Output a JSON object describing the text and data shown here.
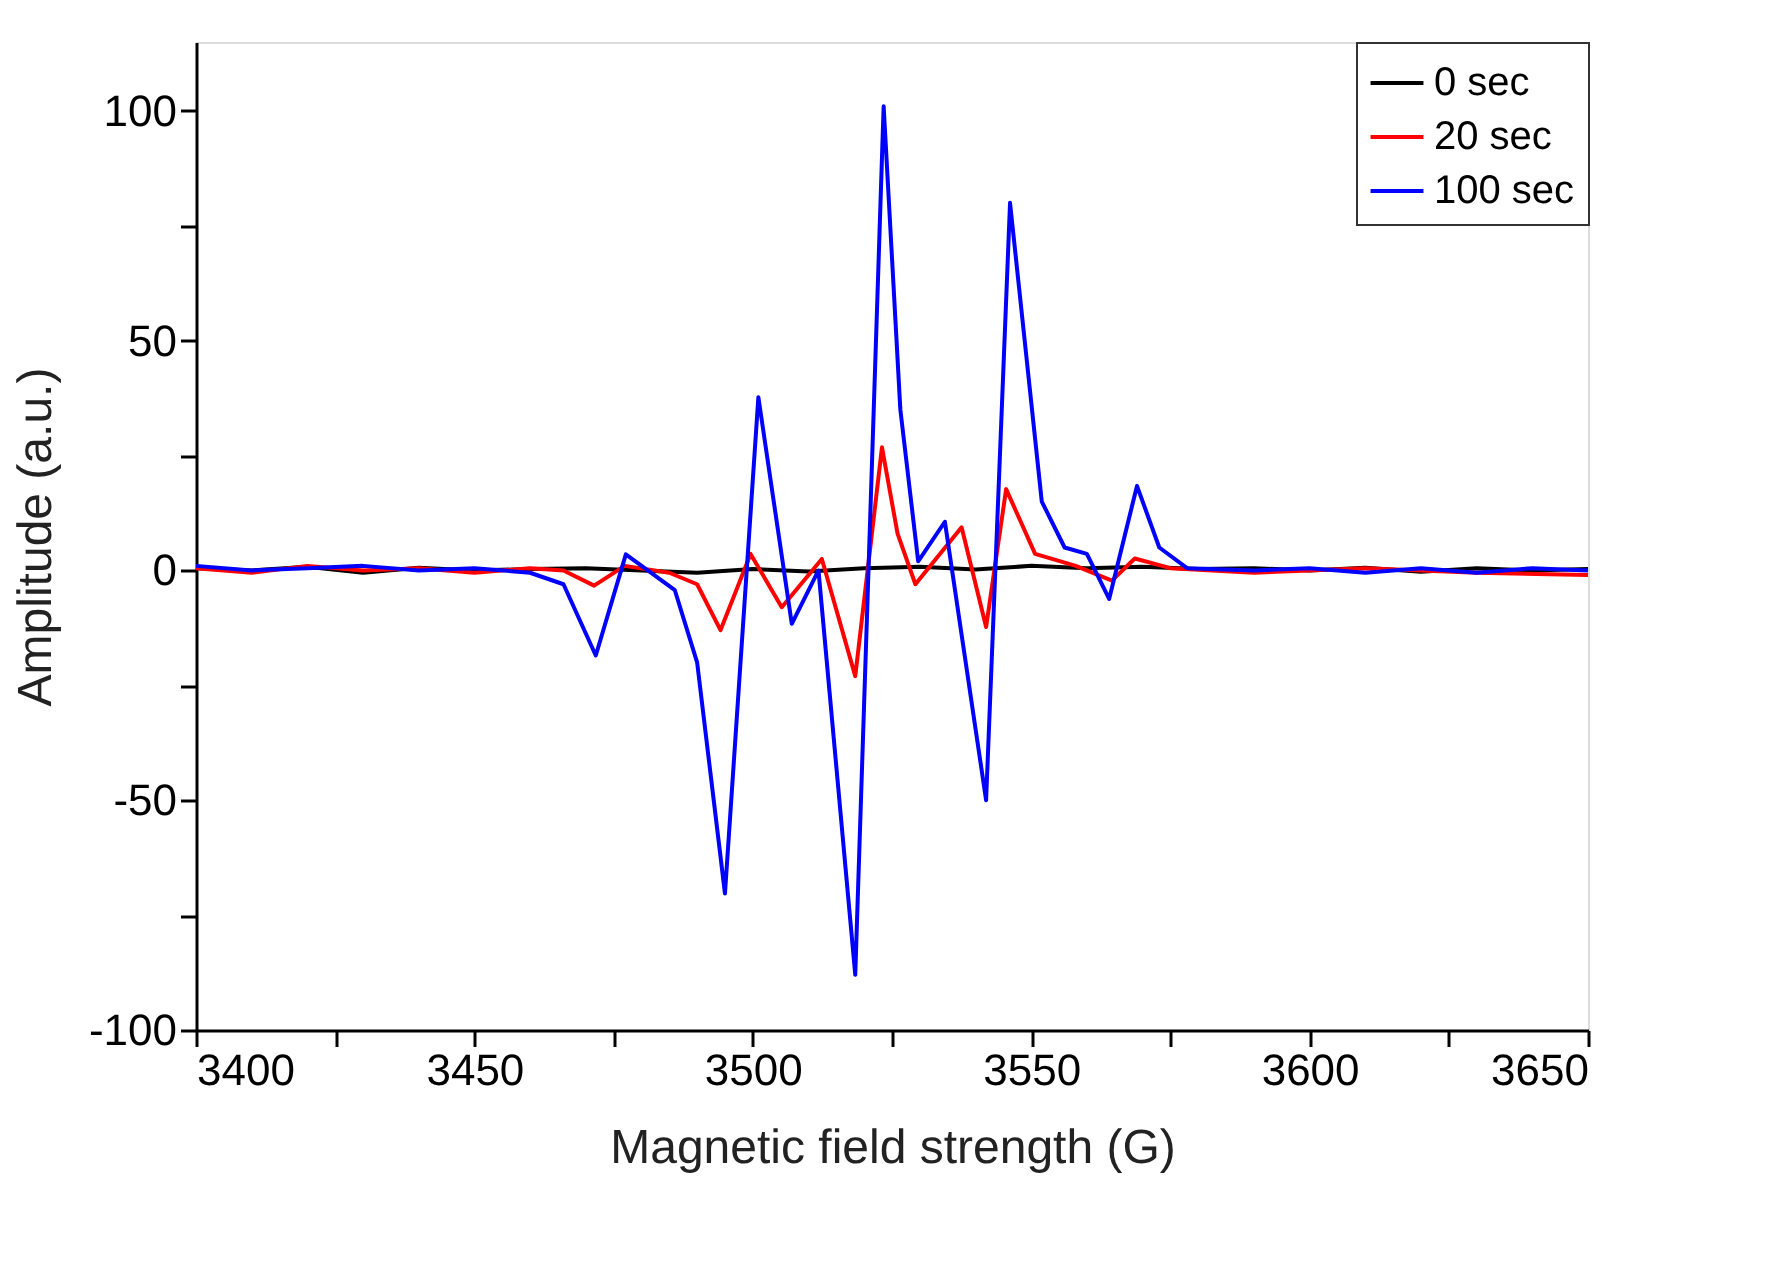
{
  "chart_data": {
    "type": "line",
    "xlabel": "Magnetic field strength (G)",
    "ylabel": "Amplitude (a.u.)",
    "xlim": [
      3400,
      3650
    ],
    "ylim": [
      -100,
      115
    ],
    "xticks": [
      3400,
      {
        "value": 3425,
        "label": null
      },
      3450,
      {
        "value": 3475,
        "label": null
      },
      3500,
      {
        "value": 3525,
        "label": null
      },
      3550,
      {
        "value": 3575,
        "label": null
      },
      3600,
      {
        "value": 3625,
        "label": null
      },
      3650
    ],
    "yticks": [
      -100,
      {
        "value": -75,
        "label": null
      },
      -50,
      {
        "value": -25,
        "label": null
      },
      0,
      {
        "value": 25,
        "label": null
      },
      50,
      {
        "value": 75,
        "label": null
      },
      100
    ],
    "grid": false,
    "legend": "top right",
    "line_style": "solid",
    "marker": "none",
    "series": [
      {
        "name": "0 sec",
        "color": "#000000",
        "x": [
          3400,
          3410,
          3420,
          3430,
          3440,
          3450,
          3460,
          3470,
          3480,
          3490,
          3500,
          3510,
          3520,
          3530,
          3540,
          3550,
          3560,
          3570,
          3580,
          3590,
          3600,
          3610,
          3620,
          3630,
          3640,
          3650
        ],
        "values": [
          0.5,
          0,
          0.8,
          -0.5,
          0.6,
          0,
          0.3,
          0.5,
          0,
          -0.5,
          0.3,
          -0.2,
          0.5,
          0.8,
          0.2,
          1,
          0.5,
          0.8,
          0.3,
          0.5,
          0,
          0.6,
          -0.3,
          0.5,
          0,
          0.3
        ]
      },
      {
        "name": "20 sec",
        "color": "#ff0000",
        "x": [
          3400,
          3410,
          3420,
          3430,
          3440,
          3450,
          3460,
          3466,
          3471.5,
          3477,
          3485,
          3490,
          3494.2,
          3499.6,
          3505.2,
          3512.4,
          3518.4,
          3523.2,
          3526,
          3529.2,
          3537.5,
          3541.9,
          3545.5,
          3550.7,
          3558,
          3564.5,
          3568.6,
          3575,
          3590,
          3610,
          3630,
          3650
        ],
        "values": [
          0.5,
          -0.5,
          1,
          0,
          0.5,
          -0.5,
          0.5,
          0,
          -3.3,
          1,
          -0.5,
          -3,
          -13,
          3.6,
          -8,
          2.5,
          -23,
          26.8,
          8,
          -3,
          9.4,
          -12.3,
          17.7,
          3.6,
          1,
          -2.2,
          2.6,
          0.5,
          -0.5,
          0.5,
          -0.5,
          -1
        ]
      },
      {
        "name": "100 sec",
        "color": "#0000ff",
        "x": [
          3400,
          3410,
          3420,
          3430,
          3440,
          3450,
          3460,
          3466,
          3471.8,
          3477.2,
          3486,
          3490,
          3495,
          3501,
          3507,
          3511.8,
          3518.4,
          3523.5,
          3526.5,
          3529.7,
          3534.5,
          3541.9,
          3546.2,
          3551.9,
          3556,
          3560,
          3564,
          3569,
          3573,
          3578,
          3590,
          3600,
          3610,
          3620,
          3630,
          3640,
          3650
        ],
        "values": [
          1,
          0,
          0.5,
          1,
          0,
          0.5,
          -0.5,
          -3,
          -18.5,
          3.5,
          -4.3,
          -20,
          -70.3,
          37.7,
          -11.6,
          0,
          -88,
          101,
          35,
          2,
          10.6,
          -50,
          80,
          15,
          5,
          3.6,
          -6.2,
          18.4,
          5,
          0.5,
          0,
          0.5,
          -0.5,
          0.5,
          -0.5,
          0.5,
          0
        ]
      }
    ]
  }
}
